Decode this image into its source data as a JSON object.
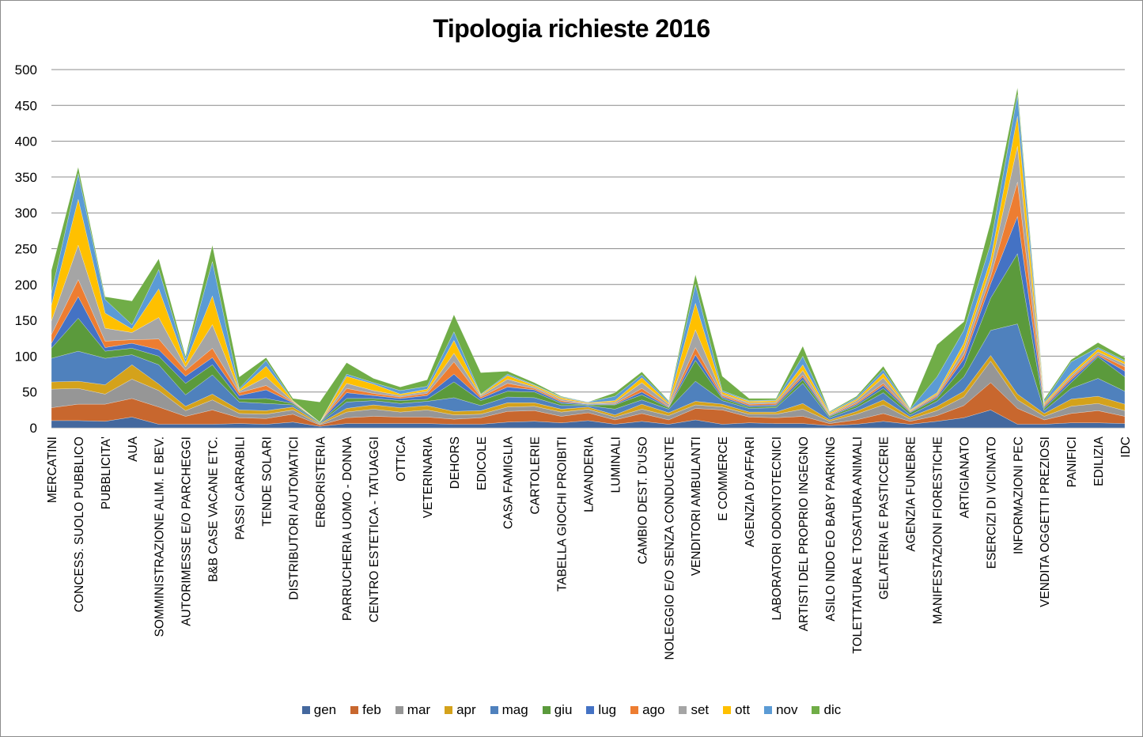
{
  "chart_data": {
    "type": "area",
    "stacked": true,
    "title": "Tipologia richieste 2016",
    "xlabel": "",
    "ylabel": "",
    "ylim": [
      0,
      500
    ],
    "yticks": [
      0,
      50,
      100,
      150,
      200,
      250,
      300,
      350,
      400,
      450,
      500
    ],
    "grid": true,
    "legend_position": "bottom",
    "categories": [
      "MERCATINI",
      "CONCESS. SUOLO PUBBLICO",
      "PUBBLICITA'",
      "AUA",
      "SOMMINISTRAZIONE ALIM. E BEV.",
      "AUTORIMESSE E/O PARCHEGGI",
      "B&B CASE VACANE ETC.",
      "PASSI CARRABILI",
      "TENDE SOLARI",
      "DISTRIBUTORI AUTOMATICI",
      "ERBORISTERIA",
      "PARRUCHERIA UOMO - DONNA",
      "CENTRO ESTETICA - TATUAGGI",
      "OTTICA",
      "VETERINARIA",
      "DEHORS",
      "EDICOLE",
      "CASA FAMIGLIA",
      "CARTOLERIE",
      "TABELLA GIOCHI PROIBITI",
      "LAVANDERIA",
      "LUMINALI",
      "CAMBIO DEST. D'USO",
      "NOLEGGIO E/O SENZA CONDUCENTE",
      "VENDITORI AMBULANTI",
      "E COMMERCE",
      "AGENZIA D'AFFARI",
      "LABORATORI ODONTOTECNICI",
      "ARTISTI DEL PROPRIO INGEGNO",
      "ASILO NIDO EO BABY PARKING",
      "TOLETTATURA E TOSATURA ANIMALI",
      "GELATERIA E PASTICCERIE",
      "AGENZIA FUNEBRE",
      "MANIFESTAZIONI FIORESTICHE",
      "ARTIGIANATO",
      "ESERCIZI DI VICINATO",
      "INFORMAZIONI PEC",
      "VENDITA OGGETTI PREZIOSI",
      "PANIFICI",
      "EDILIZIA",
      "IDC"
    ],
    "series": [
      {
        "name": "gen",
        "color": "#44689e",
        "values": [
          10,
          10,
          9,
          15,
          5,
          5,
          5,
          6,
          5,
          8,
          2,
          6,
          6,
          6,
          6,
          5,
          5,
          8,
          9,
          7,
          10,
          5,
          9,
          5,
          11,
          5,
          7,
          6,
          6,
          3,
          5,
          9,
          5,
          9,
          14,
          25,
          5,
          5,
          7,
          7,
          6
        ]
      },
      {
        "name": "feb",
        "color": "#c8672e",
        "values": [
          18,
          23,
          24,
          26,
          24,
          11,
          20,
          8,
          8,
          11,
          2,
          8,
          10,
          9,
          9,
          7,
          9,
          15,
          15,
          9,
          11,
          6,
          11,
          6,
          16,
          20,
          8,
          8,
          10,
          3,
          6,
          11,
          4,
          8,
          17,
          38,
          22,
          6,
          13,
          17,
          10
        ]
      },
      {
        "name": "mar",
        "color": "#969696",
        "values": [
          26,
          22,
          14,
          27,
          23,
          8,
          14,
          6,
          6,
          6,
          1,
          8,
          10,
          7,
          10,
          6,
          5,
          6,
          6,
          6,
          5,
          4,
          6,
          6,
          5,
          4,
          4,
          5,
          10,
          3,
          8,
          12,
          3,
          7,
          12,
          30,
          12,
          5,
          10,
          10,
          8
        ]
      },
      {
        "name": "apr",
        "color": "#d4a21b",
        "values": [
          10,
          10,
          13,
          20,
          9,
          6,
          8,
          5,
          5,
          4,
          1,
          5,
          6,
          6,
          6,
          5,
          5,
          6,
          5,
          4,
          3,
          3,
          7,
          4,
          5,
          4,
          3,
          3,
          8,
          2,
          4,
          7,
          3,
          6,
          8,
          8,
          8,
          4,
          10,
          10,
          9
        ]
      },
      {
        "name": "mag",
        "color": "#4f81bd",
        "values": [
          33,
          42,
          37,
          14,
          27,
          16,
          27,
          11,
          10,
          3,
          1,
          9,
          6,
          6,
          6,
          19,
          7,
          8,
          7,
          5,
          2,
          8,
          6,
          5,
          28,
          5,
          5,
          6,
          28,
          3,
          5,
          10,
          3,
          7,
          20,
          35,
          98,
          4,
          15,
          25,
          18
        ]
      },
      {
        "name": "giu",
        "color": "#5b9a3c",
        "values": [
          14,
          46,
          10,
          9,
          12,
          16,
          14,
          4,
          7,
          2,
          1,
          5,
          3,
          4,
          3,
          22,
          7,
          8,
          8,
          3,
          1,
          6,
          7,
          2,
          29,
          3,
          2,
          2,
          5,
          2,
          3,
          6,
          3,
          4,
          15,
          45,
          98,
          3,
          8,
          30,
          20
        ]
      },
      {
        "name": "lug",
        "color": "#4472c4",
        "values": [
          7,
          30,
          5,
          7,
          9,
          10,
          10,
          5,
          12,
          1,
          0,
          8,
          4,
          3,
          5,
          11,
          3,
          6,
          3,
          2,
          1,
          1,
          4,
          1,
          8,
          2,
          2,
          2,
          4,
          1,
          2,
          4,
          1,
          2,
          10,
          20,
          52,
          2,
          4,
          2,
          8
        ]
      },
      {
        "name": "ago",
        "color": "#ed7d31",
        "values": [
          12,
          24,
          9,
          5,
          15,
          8,
          13,
          4,
          6,
          1,
          0,
          6,
          3,
          2,
          3,
          17,
          2,
          5,
          2,
          2,
          0,
          1,
          5,
          1,
          10,
          2,
          2,
          2,
          3,
          1,
          2,
          3,
          1,
          2,
          6,
          10,
          48,
          2,
          3,
          2,
          6
        ]
      },
      {
        "name": "set",
        "color": "#a5a5a5",
        "values": [
          19,
          48,
          18,
          10,
          30,
          5,
          33,
          2,
          12,
          1,
          0,
          7,
          4,
          2,
          3,
          12,
          2,
          6,
          2,
          2,
          1,
          2,
          8,
          3,
          25,
          2,
          2,
          2,
          6,
          1,
          3,
          8,
          1,
          2,
          8,
          12,
          50,
          2,
          3,
          3,
          4
        ]
      },
      {
        "name": "ott",
        "color": "#ffc000",
        "values": [
          22,
          64,
          21,
          5,
          40,
          6,
          40,
          2,
          15,
          1,
          0,
          10,
          9,
          2,
          3,
          18,
          1,
          5,
          2,
          2,
          1,
          2,
          7,
          2,
          37,
          3,
          2,
          2,
          8,
          2,
          2,
          6,
          1,
          2,
          8,
          12,
          42,
          2,
          3,
          4,
          3
        ]
      },
      {
        "name": "nov",
        "color": "#5b9bd5",
        "values": [
          17,
          36,
          19,
          6,
          27,
          5,
          48,
          2,
          8,
          0,
          0,
          3,
          2,
          5,
          4,
          12,
          1,
          2,
          1,
          1,
          1,
          6,
          4,
          2,
          26,
          2,
          1,
          1,
          12,
          1,
          2,
          5,
          1,
          22,
          18,
          22,
          30,
          2,
          16,
          2,
          2
        ]
      },
      {
        "name": "dic",
        "color": "#70ad47",
        "values": [
          32,
          9,
          4,
          33,
          15,
          4,
          23,
          16,
          4,
          3,
          28,
          16,
          6,
          5,
          9,
          24,
          30,
          4,
          3,
          1,
          0,
          5,
          4,
          1,
          14,
          20,
          3,
          2,
          14,
          1,
          2,
          5,
          1,
          45,
          12,
          30,
          10,
          3,
          3,
          7,
          4
        ]
      }
    ]
  },
  "legend": [
    {
      "label": "gen",
      "color": "#44689e"
    },
    {
      "label": "feb",
      "color": "#c8672e"
    },
    {
      "label": "mar",
      "color": "#969696"
    },
    {
      "label": "apr",
      "color": "#d4a21b"
    },
    {
      "label": "mag",
      "color": "#4f81bd"
    },
    {
      "label": "giu",
      "color": "#5b9a3c"
    },
    {
      "label": "lug",
      "color": "#4472c4"
    },
    {
      "label": "ago",
      "color": "#ed7d31"
    },
    {
      "label": "set",
      "color": "#a5a5a5"
    },
    {
      "label": "ott",
      "color": "#ffc000"
    },
    {
      "label": "nov",
      "color": "#5b9bd5"
    },
    {
      "label": "dic",
      "color": "#70ad47"
    }
  ]
}
